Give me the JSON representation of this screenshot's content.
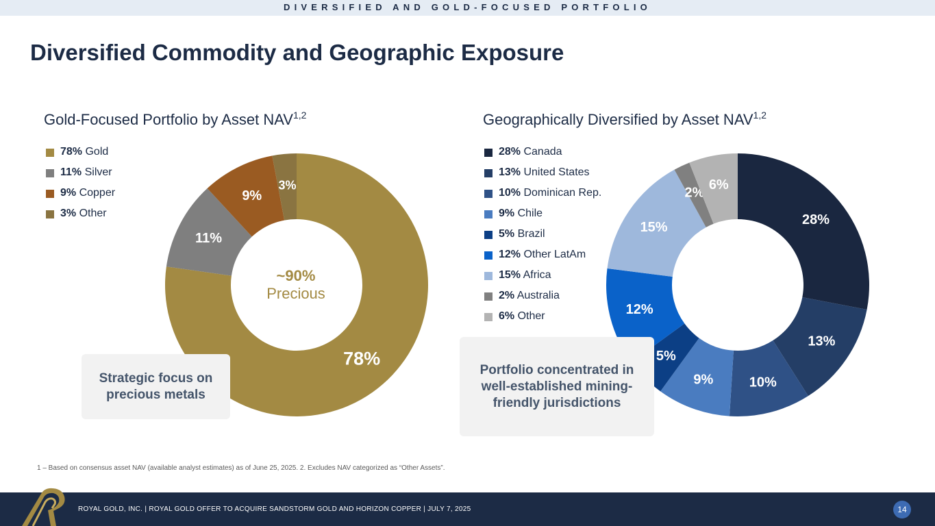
{
  "header": {
    "banner": "DIVERSIFIED AND GOLD-FOCUSED PORTFOLIO",
    "title": "Diversified Commodity and Geographic Exposure"
  },
  "chart_data": [
    {
      "type": "pie",
      "subtype": "donut",
      "title": "Gold-Focused Portfolio by Asset NAV",
      "title_superscript": "1,2",
      "center_value": "~90%",
      "center_text": "Precious",
      "categories": [
        "Gold",
        "Silver",
        "Copper",
        "Other"
      ],
      "values": [
        78,
        11,
        9,
        3
      ],
      "labels": [
        "78%",
        "11%",
        "9%",
        "3%"
      ],
      "legend_values": [
        "78%",
        "11%",
        "9%",
        "3%"
      ],
      "colors": [
        "#a38a43",
        "#7f7f7f",
        "#9a5b22",
        "#8a7441"
      ],
      "legend_position": "top-left"
    },
    {
      "type": "pie",
      "subtype": "donut",
      "title": "Geographically Diversified by Asset NAV",
      "title_superscript": "1,2",
      "categories": [
        "Canada",
        "United States",
        "Dominican Rep.",
        "Chile",
        "Brazil",
        "Other LatAm",
        "Africa",
        "Australia",
        "Other"
      ],
      "values": [
        28,
        13,
        10,
        9,
        5,
        12,
        15,
        2,
        6
      ],
      "labels": [
        "28%",
        "13%",
        "10%",
        "9%",
        "5%",
        "12%",
        "15%",
        "2%",
        "6%"
      ],
      "legend_values": [
        "28%",
        "13%",
        "10%",
        "9%",
        "5%",
        "12%",
        "15%",
        "2%",
        "6%"
      ],
      "colors": [
        "#1a2740",
        "#243e66",
        "#2f5186",
        "#4a7cc0",
        "#0c3f85",
        "#0a62c9",
        "#9eb8dc",
        "#808080",
        "#b3b3b3"
      ],
      "legend_position": "top-left"
    }
  ],
  "callouts": {
    "left": "Strategic focus on precious metals",
    "right": "Portfolio concentrated in well-established mining-friendly jurisdictions"
  },
  "footnote": "1 – Based on consensus asset NAV (available analyst estimates) as of June 25, 2025. 2. Excludes NAV categorized as “Other Assets”.",
  "footer": {
    "text": "ROYAL GOLD, INC.   |   ROYAL GOLD OFFER TO ACQUIRE SANDSTORM GOLD AND HORIZON COPPER   |   JULY 7, 2025",
    "page_number": "14"
  }
}
